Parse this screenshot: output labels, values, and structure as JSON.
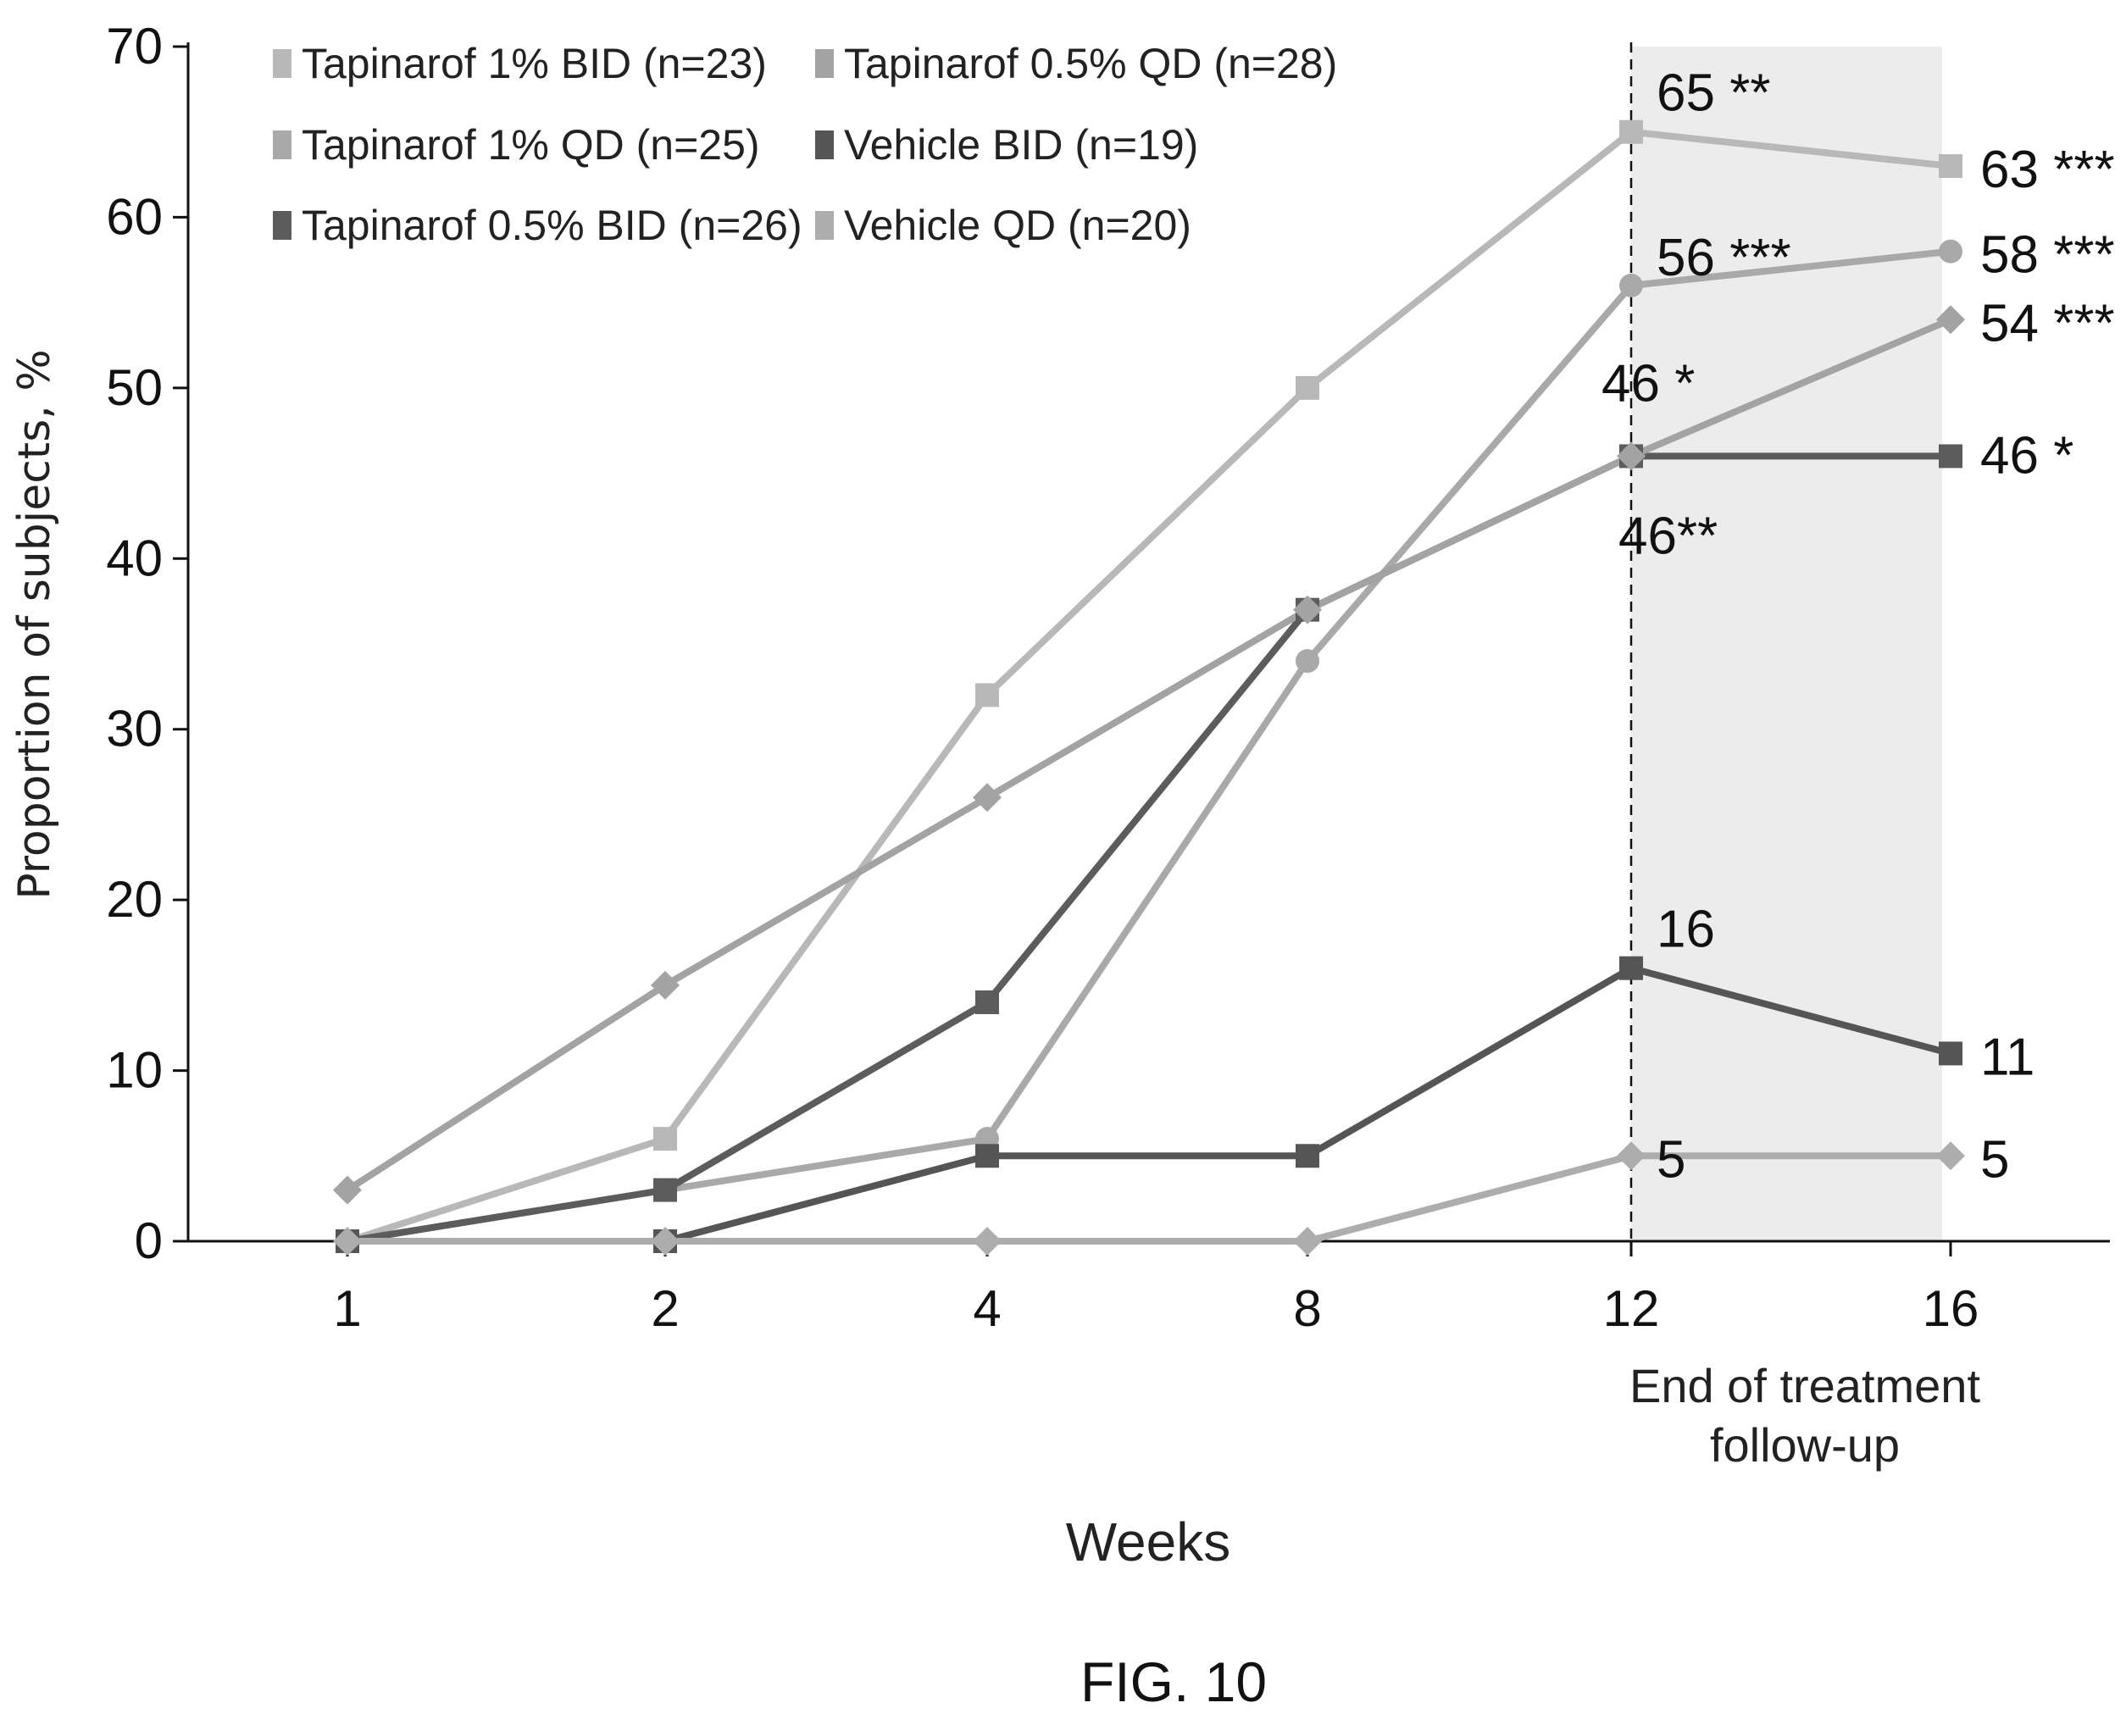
{
  "chart_data": {
    "type": "line",
    "categories": [
      "1",
      "2",
      "4",
      "8",
      "12",
      "16"
    ],
    "ylabel": "Proportion of subjects, %",
    "xlabel": "Weeks",
    "ylim": [
      0,
      70
    ],
    "yticks": [
      "0",
      "10",
      "20",
      "30",
      "40",
      "50",
      "60",
      "70"
    ],
    "legend_position": "top-left",
    "series": [
      {
        "name": "Tapinarof 1% BID (n=23)",
        "values": [
          0,
          6,
          32,
          50,
          65,
          63
        ],
        "color": "#b8b8b8",
        "marker": "square"
      },
      {
        "name": "Tapinarof 1% QD (n=25)",
        "values": [
          0,
          3,
          6,
          34,
          56,
          58
        ],
        "color": "#a9a9a9",
        "marker": "circle"
      },
      {
        "name": "Tapinarof 0.5% BID (n=26)",
        "values": [
          0,
          3,
          14,
          37,
          46,
          46
        ],
        "color": "#5c5c5c",
        "marker": "square"
      },
      {
        "name": "Tapinarof 0.5% QD (n=28)",
        "values": [
          3,
          15,
          26,
          37,
          46,
          54
        ],
        "color": "#a3a3a3",
        "marker": "diamond"
      },
      {
        "name": "Vehicle BID (n=19)",
        "values": [
          0,
          0,
          5,
          5,
          16,
          11
        ],
        "color": "#555555",
        "marker": "square"
      },
      {
        "name": "Vehicle QD (n=20)",
        "values": [
          0,
          0,
          0,
          0,
          5,
          5
        ],
        "color": "#adadad",
        "marker": "diamond"
      }
    ],
    "annotations": [
      {
        "text": "65 **",
        "x": "12",
        "y": 65
      },
      {
        "text": "56 ***",
        "x": "12",
        "y": 56
      },
      {
        "text": "46 *",
        "x": "12",
        "y": 46
      },
      {
        "text": "46**",
        "x": "12",
        "y": 46
      },
      {
        "text": "16",
        "x": "12",
        "y": 16
      },
      {
        "text": "5",
        "x": "12",
        "y": 5
      },
      {
        "text": "63 ***",
        "x": "16",
        "y": 63
      },
      {
        "text": "58 ***",
        "x": "16",
        "y": 58
      },
      {
        "text": "54 ***",
        "x": "16",
        "y": 54
      },
      {
        "text": "46 *",
        "x": "16",
        "y": 46
      },
      {
        "text": "11",
        "x": "16",
        "y": 11
      },
      {
        "text": "5",
        "x": "16",
        "y": 5
      }
    ],
    "period_labels": [
      "End of treatment",
      "follow-up"
    ],
    "caption": "FIG. 10",
    "shaded_region": {
      "from": "12",
      "to": "16",
      "color": "#ececec"
    },
    "dashed_line_at": "12"
  }
}
